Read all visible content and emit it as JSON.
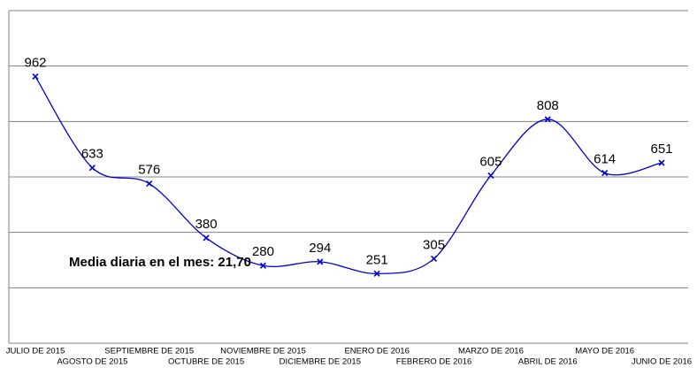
{
  "chart_data": {
    "type": "line",
    "annotation": "Media diaria en el mes: 21,70",
    "categories": [
      "JULIO DE 2015",
      "AGOSTO DE 2015",
      "SEPTIEMBRE DE 2015",
      "OCTUBRE DE 2015",
      "NOVIEMBRE DE 2015",
      "DICIEMBRE DE 2015",
      "ENERO DE 2016",
      "FEBRERO DE 2016",
      "MARZO DE 2016",
      "ABRIL DE 2016",
      "MAYO DE 2016",
      "JUNIO DE 2016"
    ],
    "series": [
      {
        "name": null,
        "color": "#0000cc",
        "values": [
          962,
          633,
          576,
          380,
          280,
          294,
          251,
          305,
          605,
          808,
          614,
          651
        ]
      }
    ],
    "ylim": [
      0,
      1200
    ],
    "yticks": [
      0,
      200,
      400,
      600,
      800,
      1000,
      1200
    ],
    "grid": true
  }
}
